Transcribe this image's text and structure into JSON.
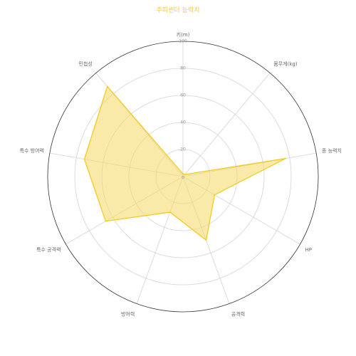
{
  "colors": {
    "title": "#f2c94c",
    "grid": "#d3d3d3",
    "outer_ring": "#333333",
    "series_fill": "#f7dc6f",
    "series_fill_opacity": 0.6,
    "series_stroke": "#f2c811"
  },
  "chart_data": {
    "type": "radar",
    "title": "주피썬더 능력치",
    "axes": [
      "키(m)",
      "몸무게(kg)",
      "종 능력치",
      "HP",
      "공격력",
      "방어력",
      "특수 공격력",
      "특수 방어력",
      "민첩성"
    ],
    "rlim": [
      0,
      100
    ],
    "ticks": [
      0,
      20,
      40,
      60,
      80,
      100
    ],
    "grid": true,
    "series": [
      {
        "values": [
          2,
          2,
          77,
          27,
          50,
          28,
          66,
          74,
          87
        ]
      }
    ]
  }
}
